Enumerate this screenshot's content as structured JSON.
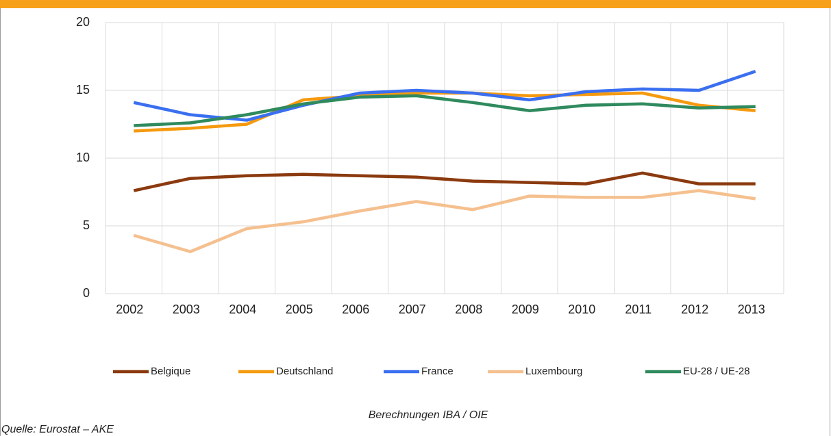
{
  "chart_data": {
    "type": "line",
    "categories": [
      "2002",
      "2003",
      "2004",
      "2005",
      "2006",
      "2007",
      "2008",
      "2009",
      "2010",
      "2011",
      "2012",
      "2013"
    ],
    "series": [
      {
        "name": "Belgique",
        "color": "#8b3a0f",
        "values": [
          7.6,
          8.5,
          8.7,
          8.8,
          8.7,
          8.6,
          8.3,
          8.2,
          8.1,
          8.9,
          8.1,
          8.1
        ]
      },
      {
        "name": "Deutschland",
        "color": "#f59a0f",
        "values": [
          12.0,
          12.2,
          12.5,
          14.3,
          14.6,
          14.8,
          14.8,
          14.6,
          14.7,
          14.8,
          13.9,
          13.5
        ]
      },
      {
        "name": "France",
        "color": "#3a6ff0",
        "values": [
          14.1,
          13.2,
          12.8,
          13.9,
          14.8,
          15.0,
          14.8,
          14.3,
          14.9,
          15.1,
          15.0,
          16.4
        ]
      },
      {
        "name": "Luxembourg",
        "color": "#f5c08f",
        "values": [
          4.3,
          3.1,
          4.8,
          5.3,
          6.1,
          6.8,
          6.2,
          7.2,
          7.1,
          7.1,
          7.6,
          7.0
        ]
      },
      {
        "name": "EU-28 / UE-28",
        "color": "#2f8a5e",
        "values": [
          12.4,
          12.6,
          13.2,
          14.0,
          14.5,
          14.6,
          14.1,
          13.5,
          13.9,
          14.0,
          13.7,
          13.8
        ]
      }
    ],
    "ylim": [
      0,
      20
    ],
    "yticks": [
      0,
      5,
      10,
      15,
      20
    ],
    "grid": true,
    "legend": "bottom",
    "note": "Berechnungen IBA / OIE",
    "source": "Quelle: Eurostat – AKE"
  }
}
